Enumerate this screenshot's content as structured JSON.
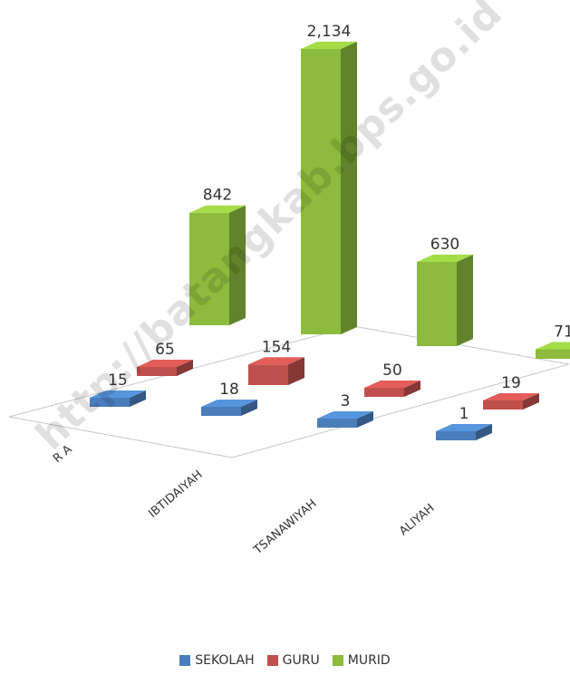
{
  "chart_data": {
    "type": "bar",
    "categories": [
      "R A",
      "IBTIDAIYAH",
      "TSANAWIYAH",
      "ALIYAH"
    ],
    "series": [
      {
        "name": "SEKOLAH",
        "values": [
          15,
          18,
          3,
          1
        ],
        "labels": [
          "15",
          "18",
          "3",
          "1"
        ]
      },
      {
        "name": "GURU",
        "values": [
          65,
          154,
          50,
          19
        ],
        "labels": [
          "65",
          "154",
          "50",
          "19"
        ]
      },
      {
        "name": "MURID",
        "values": [
          842,
          2134,
          630,
          71
        ],
        "labels": [
          "842",
          "2,134",
          "630",
          "71"
        ]
      }
    ],
    "style": "3d-column",
    "legend_position": "bottom",
    "grid": false
  },
  "colors": {
    "SEKOLAH": "#4a7ebb",
    "GURU": "#c0504d",
    "MURID": "#8cbb3e"
  },
  "watermark": "http://batangkab.bps.go.id"
}
